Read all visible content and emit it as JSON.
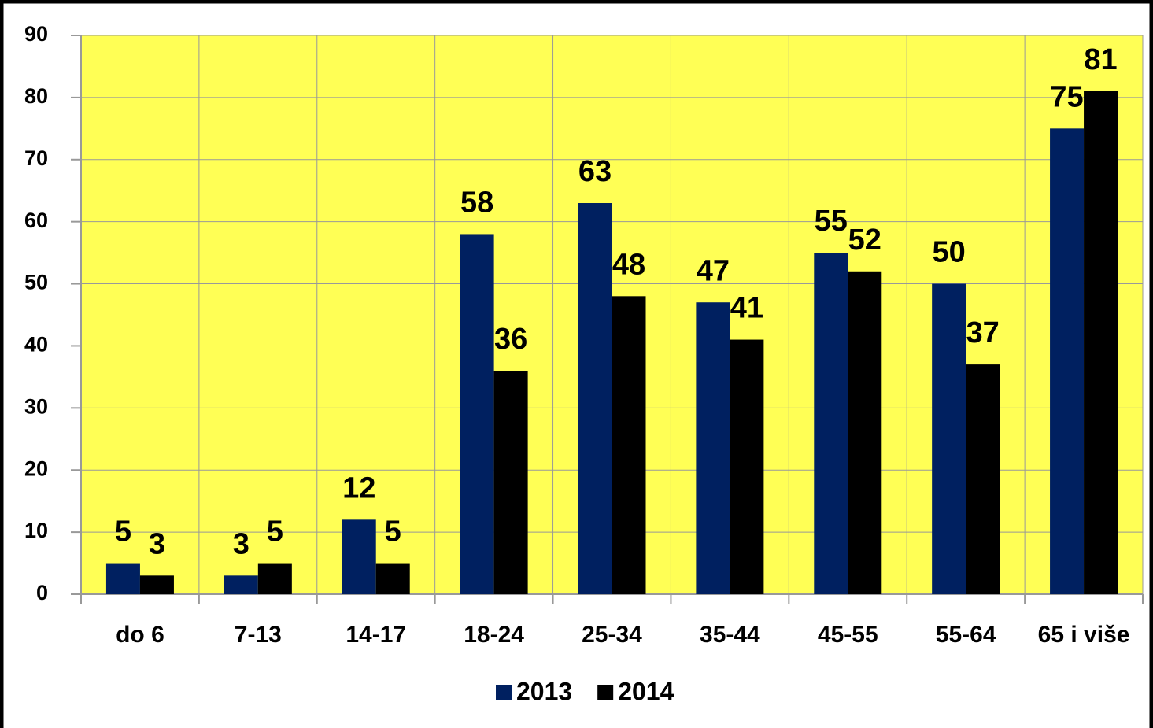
{
  "chart_data": {
    "type": "bar",
    "categories": [
      "do 6",
      "7-13",
      "14-17",
      "18-24",
      "25-34",
      "35-44",
      "45-55",
      "55-64",
      "65 i više"
    ],
    "series": [
      {
        "name": "2013",
        "color": "#002060",
        "values": [
          5,
          3,
          12,
          58,
          63,
          47,
          55,
          50,
          75
        ]
      },
      {
        "name": "2014",
        "color": "#000000",
        "values": [
          3,
          5,
          5,
          36,
          48,
          41,
          52,
          37,
          81
        ]
      }
    ],
    "ylim": [
      0,
      90
    ],
    "yticks": [
      0,
      10,
      20,
      30,
      40,
      50,
      60,
      70,
      80,
      90
    ],
    "grid": true,
    "background": "#ffff55",
    "legend": "bottom"
  }
}
